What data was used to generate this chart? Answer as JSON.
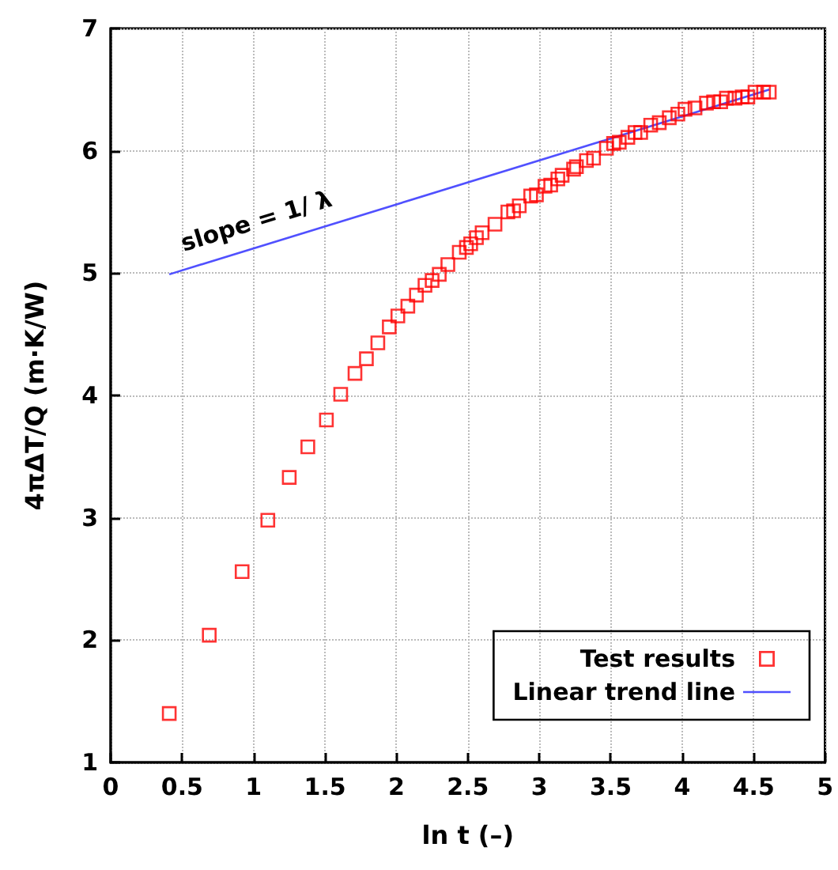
{
  "chart_data": {
    "type": "scatter",
    "xlabel": "ln t (–)",
    "ylabel": "4πΔT/Q (m·K/W)",
    "annotations": [
      "slope = 1/ λ"
    ],
    "xlim": [
      0,
      5
    ],
    "ylim": [
      1,
      7
    ],
    "xticks": [
      0,
      0.5,
      1,
      1.5,
      2,
      2.5,
      3,
      3.5,
      4,
      4.5,
      5
    ],
    "yticks": [
      1,
      2,
      3,
      4,
      5,
      6,
      7
    ],
    "grid": true,
    "legend": "bottom right",
    "series": [
      {
        "name": "Test results",
        "marker": "square",
        "color": "#ff0000",
        "x": [
          0.41,
          0.69,
          0.92,
          1.1,
          1.25,
          1.38,
          1.51,
          1.61,
          1.71,
          1.79,
          1.87,
          1.95,
          2.01,
          2.08,
          2.14,
          2.2,
          2.25,
          2.3,
          2.36,
          2.44,
          2.49,
          2.52,
          2.56,
          2.6,
          2.69,
          2.78,
          2.82,
          2.86,
          2.94,
          2.98,
          3.04,
          3.08,
          3.13,
          3.16,
          3.24,
          3.26,
          3.33,
          3.38,
          3.47,
          3.52,
          3.56,
          3.62,
          3.67,
          3.71,
          3.78,
          3.84,
          3.91,
          3.97,
          4.02,
          4.09,
          4.17,
          4.22,
          4.27,
          4.31,
          4.37,
          4.42,
          4.46,
          4.51,
          4.57,
          4.61
        ],
        "values": [
          1.4,
          2.04,
          2.56,
          2.98,
          3.33,
          3.58,
          3.8,
          4.01,
          4.18,
          4.3,
          4.43,
          4.56,
          4.65,
          4.73,
          4.82,
          4.9,
          4.94,
          4.99,
          5.07,
          5.17,
          5.21,
          5.24,
          5.29,
          5.33,
          5.4,
          5.5,
          5.51,
          5.55,
          5.63,
          5.64,
          5.71,
          5.72,
          5.77,
          5.8,
          5.85,
          5.87,
          5.92,
          5.94,
          6.02,
          6.06,
          6.07,
          6.11,
          6.15,
          6.15,
          6.21,
          6.23,
          6.27,
          6.3,
          6.34,
          6.35,
          6.39,
          6.4,
          6.4,
          6.43,
          6.43,
          6.44,
          6.44,
          6.48,
          6.48,
          6.48
        ]
      },
      {
        "name": "Linear trend line",
        "type": "line",
        "marker": "none",
        "line_style": "solid",
        "color": "#5050ff",
        "x": [
          0.41,
          4.61
        ],
        "values": [
          4.99,
          6.5
        ]
      }
    ]
  }
}
